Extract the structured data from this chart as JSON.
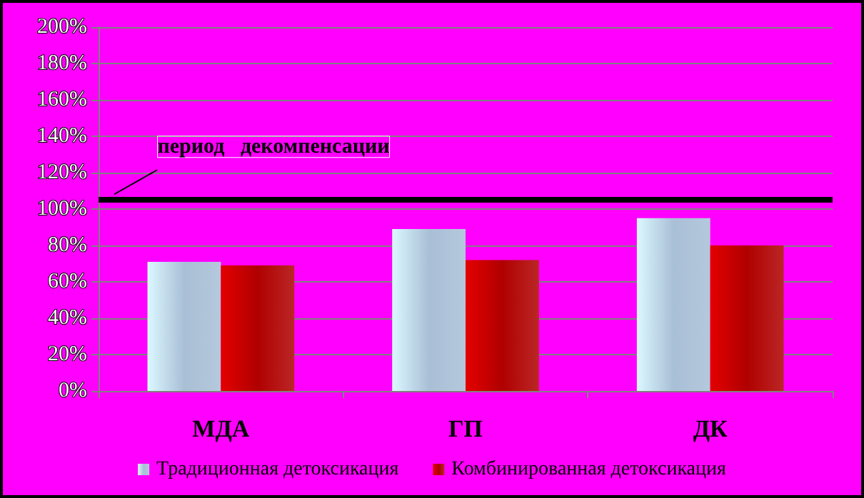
{
  "chart_data": {
    "type": "bar",
    "categories": [
      "МДА",
      "ГП",
      "ДК"
    ],
    "series": [
      {
        "name": "Традиционная детоксикация",
        "color": "#a9bfd6",
        "values": [
          71,
          89,
          95
        ]
      },
      {
        "name": "Комбинированная детоксикация",
        "color": "#b00000",
        "values": [
          69,
          72,
          80
        ]
      }
    ],
    "ylim": [
      0,
      200
    ],
    "yticks": [
      {
        "value": 0,
        "label": "0%"
      },
      {
        "value": 20,
        "label": "20%"
      },
      {
        "value": 40,
        "label": "40%"
      },
      {
        "value": 60,
        "label": "60%"
      },
      {
        "value": 80,
        "label": "80%"
      },
      {
        "value": 100,
        "label": "100%"
      },
      {
        "value": 120,
        "label": "120%"
      },
      {
        "value": 140,
        "label": "140%"
      },
      {
        "value": 160,
        "label": "160%"
      },
      {
        "value": 180,
        "label": "180%"
      },
      {
        "value": 200,
        "label": "200%"
      }
    ],
    "ref_lines": [
      {
        "axis": "y",
        "value": 105,
        "label": "период   декомпенсации",
        "color": "#000000"
      }
    ],
    "grid": "y",
    "legend": "bottom"
  }
}
